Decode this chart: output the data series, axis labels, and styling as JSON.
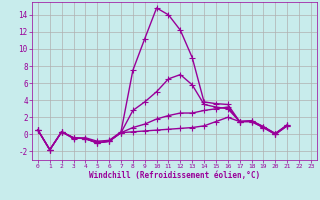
{
  "xlabel": "Windchill (Refroidissement éolien,°C)",
  "x": [
    0,
    1,
    2,
    3,
    4,
    5,
    6,
    7,
    8,
    9,
    10,
    11,
    12,
    13,
    14,
    15,
    16,
    17,
    18,
    19,
    20,
    21,
    22,
    23
  ],
  "lines": [
    [
      0.5,
      -1.8,
      0.3,
      -0.5,
      -0.4,
      -0.8,
      -0.7,
      0.3,
      7.5,
      11.2,
      14.8,
      14.0,
      12.2,
      9.0,
      3.8,
      3.6,
      3.5,
      1.5,
      1.5,
      0.8,
      0.0,
      1.0,
      null,
      null
    ],
    [
      0.5,
      -1.8,
      0.3,
      -0.4,
      -0.5,
      -1.0,
      -0.8,
      0.2,
      2.8,
      3.8,
      5.0,
      6.5,
      7.0,
      5.8,
      3.5,
      3.2,
      3.0,
      1.5,
      1.5,
      0.8,
      0.0,
      1.0,
      null,
      null
    ],
    [
      0.5,
      -1.8,
      0.3,
      -0.4,
      -0.5,
      -1.0,
      -0.8,
      0.2,
      0.8,
      1.2,
      1.8,
      2.2,
      2.5,
      2.5,
      2.8,
      3.0,
      3.2,
      1.5,
      1.6,
      0.9,
      0.1,
      1.1,
      null,
      null
    ],
    [
      0.5,
      -1.8,
      0.3,
      -0.4,
      -0.5,
      -1.0,
      -0.8,
      0.2,
      0.3,
      0.4,
      0.5,
      0.6,
      0.7,
      0.8,
      1.0,
      1.5,
      2.0,
      1.5,
      1.6,
      0.9,
      0.1,
      1.1,
      null,
      null
    ]
  ],
  "line_color": "#990099",
  "bg_color": "#c8ecec",
  "grid_color": "#b0b0b0",
  "ylim": [
    -3.0,
    15.5
  ],
  "yticks": [
    -2,
    0,
    2,
    4,
    6,
    8,
    10,
    12,
    14
  ],
  "xticks": [
    0,
    1,
    2,
    3,
    4,
    5,
    6,
    7,
    8,
    9,
    10,
    11,
    12,
    13,
    14,
    15,
    16,
    17,
    18,
    19,
    20,
    21,
    22,
    23
  ],
  "marker": "+",
  "markersize": 4,
  "linewidth": 1.0
}
